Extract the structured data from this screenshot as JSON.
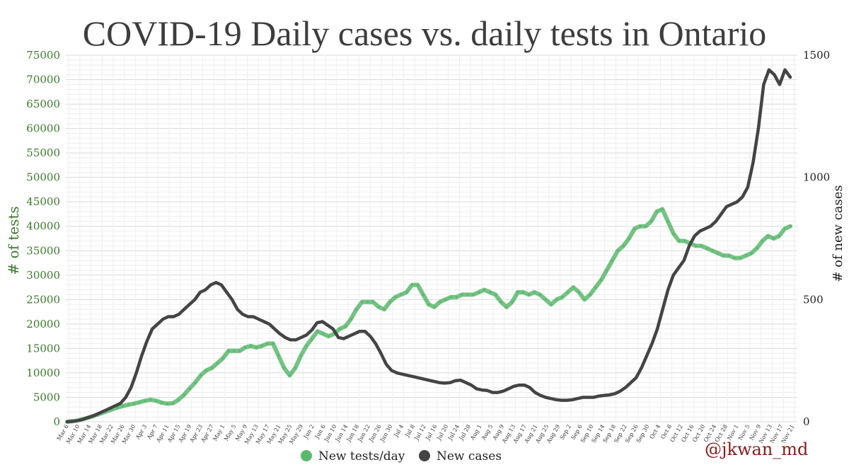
{
  "chart_data": {
    "type": "line",
    "title": "COVID-19 Daily cases vs. daily tests in Ontario",
    "ylabel_left": "# of tests",
    "ylabel_right": "# of new cases",
    "ylim_left": [
      0,
      75000
    ],
    "ylim_right": [
      0,
      1500
    ],
    "yticks_left": [
      "0",
      "5000",
      "10000",
      "15000",
      "20000",
      "25000",
      "30000",
      "35000",
      "40000",
      "45000",
      "50000",
      "55000",
      "60000",
      "65000",
      "70000",
      "75000"
    ],
    "yticks_right": [
      "0",
      "500",
      "1000",
      "1500"
    ],
    "xtick_labels": [
      "Mar 6",
      "Mar 10",
      "Mar 14",
      "Mar 18",
      "Mar 22",
      "Mar 26",
      "Mar 30",
      "Apr 3",
      "Apr 7",
      "Apr 11",
      "Apr 15",
      "Apr 19",
      "Apr 23",
      "Apr 27",
      "May 1",
      "May 5",
      "May 9",
      "May 13",
      "May 17",
      "May 21",
      "May 25",
      "May 29",
      "Jun 2",
      "Jun 6",
      "Jun 10",
      "Jun 14",
      "Jun 18",
      "Jun 22",
      "Jun 26",
      "Jun 30",
      "Jul 4",
      "Jul 8",
      "Jul 12",
      "Jul 16",
      "Jul 20",
      "Jul 24",
      "Jul 28",
      "Aug 1",
      "Aug 5",
      "Aug 9",
      "Aug 13",
      "Aug 17",
      "Aug 21",
      "Aug 25",
      "Aug 29",
      "Sep 2",
      "Sep 6",
      "Sep 10",
      "Sep 14",
      "Sep 18",
      "Sep 22",
      "Sep 26",
      "Sep 30",
      "Oct 4",
      "Oct 8",
      "Oct 12",
      "Oct 16",
      "Oct 20",
      "Oct 24",
      "Oct 28",
      "Nov 1",
      "Nov 5",
      "Nov 9",
      "Nov 13",
      "Nov 17",
      "Nov 21"
    ],
    "grid": true,
    "legend_position": "bottom-center",
    "series": [
      {
        "name": "New tests/day",
        "axis": "left",
        "color": "#5cb86e",
        "values_7day_avg": [
          0,
          100,
          300,
          600,
          900,
          1300,
          1700,
          2100,
          2500,
          2900,
          3200,
          3500,
          3700,
          4000,
          4300,
          4500,
          4300,
          3900,
          3700,
          3800,
          4500,
          5500,
          6800,
          8000,
          9500,
          10500,
          11000,
          12000,
          13000,
          14500,
          14500,
          14500,
          15200,
          15500,
          15200,
          15500,
          16000,
          16000,
          13500,
          11000,
          9500,
          11000,
          13500,
          15500,
          17000,
          18500,
          18000,
          17500,
          18000,
          19000,
          19500,
          21000,
          23000,
          24500,
          24500,
          24500,
          23500,
          23000,
          24500,
          25500,
          26000,
          26500,
          28000,
          28000,
          26000,
          24000,
          23500,
          24500,
          25000,
          25500,
          25500,
          26000,
          26000,
          26000,
          26500,
          27000,
          26500,
          26000,
          24500,
          23500,
          24500,
          26500,
          26500,
          26000,
          26500,
          26000,
          25000,
          24000,
          25000,
          25500,
          26500,
          27500,
          26500,
          25000,
          26000,
          27500,
          29000,
          31000,
          33000,
          35000,
          36000,
          37500,
          39500,
          40000,
          40000,
          41000,
          43000,
          43500,
          41000,
          38500,
          37000,
          37000,
          36500,
          36000,
          36000,
          35500,
          35000,
          34500,
          34000,
          34000,
          33500,
          33500,
          34000,
          34500,
          35500,
          37000,
          38000,
          37500,
          38000,
          39500,
          40000
        ]
      },
      {
        "name": "New cases",
        "axis": "right",
        "color": "#444444",
        "values_7day_avg": [
          0,
          2,
          5,
          10,
          18,
          25,
          35,
          45,
          55,
          65,
          75,
          100,
          140,
          200,
          270,
          330,
          380,
          400,
          420,
          430,
          430,
          440,
          460,
          480,
          500,
          530,
          540,
          560,
          570,
          560,
          530,
          500,
          460,
          440,
          430,
          430,
          420,
          410,
          400,
          380,
          360,
          345,
          335,
          335,
          345,
          355,
          375,
          405,
          410,
          395,
          380,
          345,
          340,
          350,
          360,
          370,
          370,
          350,
          320,
          280,
          235,
          210,
          200,
          195,
          190,
          185,
          180,
          175,
          170,
          165,
          160,
          158,
          160,
          168,
          170,
          160,
          150,
          135,
          130,
          128,
          120,
          120,
          125,
          135,
          145,
          150,
          150,
          140,
          120,
          108,
          100,
          95,
          90,
          88,
          88,
          90,
          95,
          100,
          100,
          100,
          105,
          108,
          110,
          115,
          125,
          140,
          160,
          180,
          220,
          270,
          320,
          380,
          460,
          540,
          600,
          630,
          660,
          720,
          760,
          780,
          790,
          800,
          820,
          850,
          880,
          890,
          900,
          920,
          960,
          1060,
          1200,
          1380,
          1440,
          1420,
          1380,
          1440,
          1410
        ]
      }
    ]
  },
  "legend": {
    "tests_label": "New tests/day",
    "cases_label": "New cases"
  },
  "watermark": "@jkwan_md",
  "colors": {
    "tests": "#5cb86e",
    "cases": "#444444",
    "left_axis_text": "#3a7a2a",
    "watermark": "#8b1a1a"
  }
}
